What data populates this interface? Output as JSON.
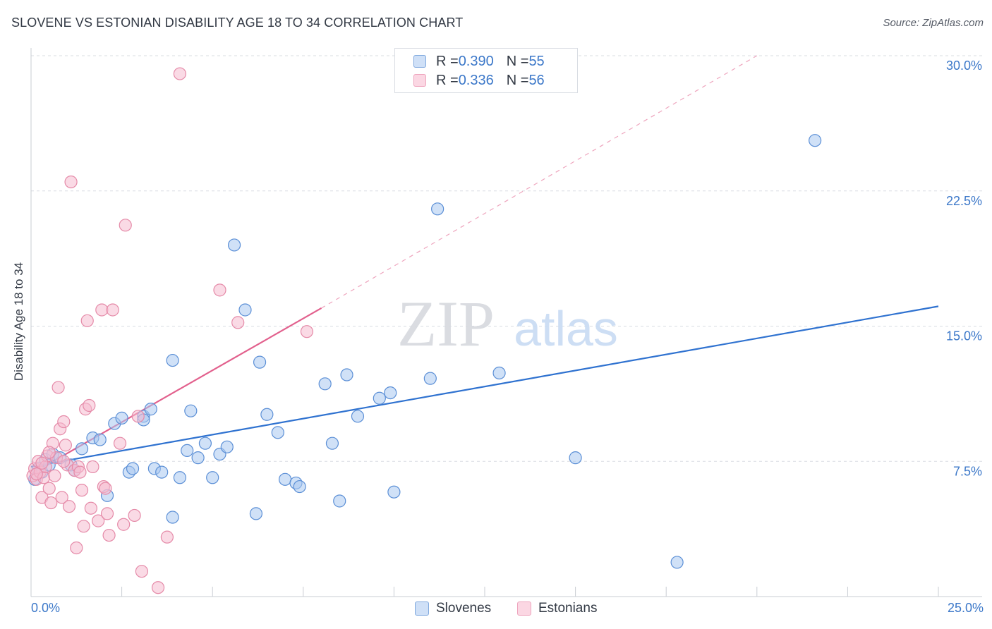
{
  "header": {
    "title": "SLOVENE VS ESTONIAN DISABILITY AGE 18 TO 34 CORRELATION CHART",
    "source": "Source: ZipAtlas.com"
  },
  "watermark": {
    "zip": "ZIP",
    "atlas": "atlas"
  },
  "legend": {
    "rows": [
      {
        "r_label": "R = ",
        "r_value": "0.390",
        "n_label": "N = ",
        "n_value": "55",
        "color": "#a9c9f0"
      },
      {
        "r_label": "R = ",
        "r_value": "0.336",
        "n_label": "N = ",
        "n_value": "56",
        "color": "#f6bcd0"
      }
    ]
  },
  "bottom_legend": [
    {
      "label": "Slovenes",
      "color": "#a9c9f0"
    },
    {
      "label": "Estonians",
      "color": "#f6bcd0"
    }
  ],
  "colors": {
    "slovenes_fill": "#a9c9f0",
    "slovenes_stroke": "#5b8fd6",
    "slovenes_line": "#2f72d0",
    "estonians_fill": "#f6bcd0",
    "estonians_stroke": "#e58aa8",
    "estonians_line": "#e2608d",
    "tick_label": "#3c78c9",
    "grid": "#d8dce2"
  },
  "chart_data": {
    "type": "scatter",
    "title": "SLOVENE VS ESTONIAN DISABILITY AGE 18 TO 34 CORRELATION CHART",
    "xlabel": "",
    "ylabel": "Disability Age 18 to 34",
    "xlim": [
      0,
      25
    ],
    "ylim": [
      0,
      30
    ],
    "x_tick_labels": [
      "0.0%",
      "25.0%"
    ],
    "y_ticks": [
      7.5,
      15.0,
      22.5,
      30.0
    ],
    "y_tick_labels": [
      "7.5%",
      "15.0%",
      "22.5%",
      "30.0%"
    ],
    "grid": true,
    "legend_position": "top-center",
    "series": [
      {
        "name": "Slovenes",
        "R": 0.39,
        "N": 55,
        "trendline": {
          "x": [
            0,
            25
          ],
          "y": [
            7.2,
            16.1
          ],
          "style": "solid"
        },
        "points": [
          [
            0.1,
            6.5
          ],
          [
            0.2,
            7.1
          ],
          [
            0.3,
            6.9
          ],
          [
            0.4,
            7.6
          ],
          [
            0.5,
            7.3
          ],
          [
            0.6,
            7.9
          ],
          [
            0.8,
            7.7
          ],
          [
            1.1,
            7.3
          ],
          [
            1.2,
            7.0
          ],
          [
            1.4,
            8.2
          ],
          [
            1.7,
            8.8
          ],
          [
            1.9,
            8.7
          ],
          [
            2.1,
            5.6
          ],
          [
            2.3,
            9.6
          ],
          [
            2.5,
            9.9
          ],
          [
            2.7,
            6.9
          ],
          [
            2.8,
            7.1
          ],
          [
            3.1,
            10.0
          ],
          [
            3.1,
            9.8
          ],
          [
            3.3,
            10.4
          ],
          [
            3.4,
            7.1
          ],
          [
            3.6,
            6.9
          ],
          [
            3.9,
            4.4
          ],
          [
            3.9,
            13.1
          ],
          [
            4.1,
            6.6
          ],
          [
            4.3,
            8.1
          ],
          [
            4.4,
            10.3
          ],
          [
            4.6,
            7.7
          ],
          [
            4.8,
            8.5
          ],
          [
            5.0,
            6.6
          ],
          [
            5.2,
            7.9
          ],
          [
            5.4,
            8.3
          ],
          [
            5.6,
            19.5
          ],
          [
            5.9,
            15.9
          ],
          [
            6.2,
            4.6
          ],
          [
            6.3,
            13.0
          ],
          [
            6.5,
            10.1
          ],
          [
            6.8,
            9.1
          ],
          [
            7.0,
            6.5
          ],
          [
            7.3,
            6.3
          ],
          [
            7.4,
            6.1
          ],
          [
            8.1,
            11.8
          ],
          [
            8.3,
            8.5
          ],
          [
            8.5,
            5.3
          ],
          [
            8.7,
            12.3
          ],
          [
            9.0,
            10.0
          ],
          [
            9.6,
            11.0
          ],
          [
            9.9,
            11.3
          ],
          [
            10.0,
            5.8
          ],
          [
            11.0,
            12.1
          ],
          [
            11.2,
            21.5
          ],
          [
            12.9,
            12.4
          ],
          [
            15.0,
            7.7
          ],
          [
            17.8,
            1.9
          ],
          [
            21.6,
            25.3
          ]
        ]
      },
      {
        "name": "Estonians",
        "R": 0.336,
        "N": 56,
        "trendline": {
          "x": [
            0,
            8.0
          ],
          "y": [
            6.8,
            16.0
          ],
          "style": "solid",
          "extension": {
            "x": [
              8.0,
              20.0
            ],
            "y": [
              16.0,
              30.0
            ],
            "style": "dashed"
          }
        },
        "points": [
          [
            0.05,
            6.7
          ],
          [
            0.1,
            7.1
          ],
          [
            0.15,
            6.5
          ],
          [
            0.2,
            7.5
          ],
          [
            0.25,
            6.9
          ],
          [
            0.3,
            5.5
          ],
          [
            0.35,
            6.6
          ],
          [
            0.4,
            7.2
          ],
          [
            0.45,
            7.8
          ],
          [
            0.5,
            6.0
          ],
          [
            0.55,
            5.2
          ],
          [
            0.6,
            8.5
          ],
          [
            0.65,
            6.7
          ],
          [
            0.7,
            7.7
          ],
          [
            0.75,
            11.6
          ],
          [
            0.8,
            9.3
          ],
          [
            0.85,
            5.5
          ],
          [
            0.9,
            9.7
          ],
          [
            0.95,
            8.4
          ],
          [
            1.0,
            7.3
          ],
          [
            1.05,
            5.0
          ],
          [
            1.1,
            23.0
          ],
          [
            1.2,
            7.0
          ],
          [
            1.25,
            2.7
          ],
          [
            1.3,
            7.2
          ],
          [
            1.4,
            5.9
          ],
          [
            1.45,
            3.9
          ],
          [
            1.5,
            10.4
          ],
          [
            1.55,
            15.3
          ],
          [
            1.6,
            10.6
          ],
          [
            1.65,
            4.9
          ],
          [
            1.7,
            7.2
          ],
          [
            1.85,
            4.2
          ],
          [
            1.95,
            15.9
          ],
          [
            2.0,
            6.1
          ],
          [
            2.05,
            6.0
          ],
          [
            2.1,
            4.6
          ],
          [
            2.15,
            3.4
          ],
          [
            2.25,
            15.9
          ],
          [
            2.45,
            8.5
          ],
          [
            2.55,
            4.0
          ],
          [
            2.6,
            20.6
          ],
          [
            2.85,
            4.5
          ],
          [
            2.95,
            10.0
          ],
          [
            3.05,
            1.4
          ],
          [
            3.5,
            0.5
          ],
          [
            3.75,
            3.3
          ],
          [
            4.1,
            29.0
          ],
          [
            5.2,
            17.0
          ],
          [
            5.7,
            15.2
          ],
          [
            7.6,
            14.7
          ],
          [
            0.5,
            8.0
          ],
          [
            0.9,
            7.5
          ],
          [
            1.35,
            6.9
          ],
          [
            0.15,
            6.8
          ],
          [
            0.3,
            7.4
          ]
        ]
      }
    ]
  }
}
